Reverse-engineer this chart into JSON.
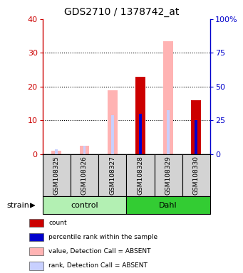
{
  "title": "GDS2710 / 1378742_at",
  "samples": [
    "GSM108325",
    "GSM108326",
    "GSM108327",
    "GSM108328",
    "GSM108329",
    "GSM108330"
  ],
  "ylim_left": [
    0,
    40
  ],
  "ylim_right": [
    0,
    100
  ],
  "yticks_left": [
    0,
    10,
    20,
    30,
    40
  ],
  "yticks_right": [
    0,
    25,
    50,
    75,
    100
  ],
  "yticklabels_right": [
    "0",
    "25",
    "50",
    "75",
    "100%"
  ],
  "value_absent": [
    1.0,
    2.5,
    19.0,
    null,
    33.5,
    null
  ],
  "rank_absent": [
    1.5,
    2.5,
    11.5,
    null,
    13.0,
    null
  ],
  "count_present": [
    null,
    null,
    null,
    23.0,
    null,
    16.0
  ],
  "rank_present": [
    null,
    null,
    null,
    12.0,
    null,
    10.0
  ],
  "color_value_absent": "#ffb3b3",
  "color_rank_absent": "#c8d0ff",
  "color_count": "#cc0000",
  "color_rank": "#0000cc",
  "legend_items": [
    {
      "color": "#cc0000",
      "label": "count"
    },
    {
      "color": "#0000cc",
      "label": "percentile rank within the sample"
    },
    {
      "color": "#ffb3b3",
      "label": "value, Detection Call = ABSENT"
    },
    {
      "color": "#c8d0ff",
      "label": "rank, Detection Call = ABSENT"
    }
  ],
  "ylabel_left_color": "#cc0000",
  "ylabel_right_color": "#0000cc",
  "groups_info": [
    {
      "label": "control",
      "start": 0,
      "end": 2,
      "color": "#b3f0b3"
    },
    {
      "label": "Dahl",
      "start": 3,
      "end": 5,
      "color": "#33cc33"
    }
  ]
}
